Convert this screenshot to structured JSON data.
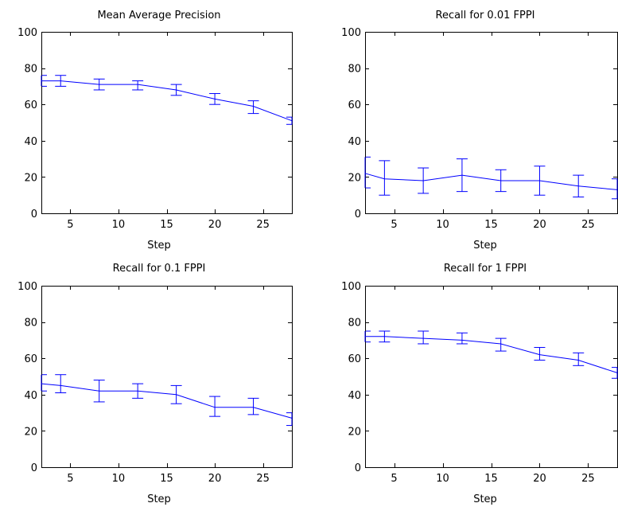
{
  "figure": {
    "background": "#ffffff",
    "axis_color": "#000000",
    "line_color": "#0000ff"
  },
  "chart_data": [
    {
      "type": "line",
      "title": "Mean Average Precision",
      "xlabel": "Step",
      "ylabel": "",
      "xlim": [
        2,
        28
      ],
      "ylim": [
        0,
        100
      ],
      "xticks": [
        5,
        10,
        15,
        20,
        25
      ],
      "yticks": [
        0,
        20,
        40,
        60,
        80,
        100
      ],
      "grid": false,
      "series": [
        {
          "x": [
            2,
            4,
            8,
            12,
            16,
            20,
            24,
            28
          ],
          "y": [
            73,
            73,
            71,
            71,
            68,
            63,
            59,
            51
          ],
          "error_low": [
            70,
            70,
            68,
            68,
            65,
            60,
            55,
            49
          ],
          "error_high": [
            76,
            76,
            74,
            73,
            71,
            66,
            62,
            53
          ]
        }
      ]
    },
    {
      "type": "line",
      "title": "Recall for 0.01 FPPI",
      "xlabel": "Step",
      "ylabel": "",
      "xlim": [
        2,
        28
      ],
      "ylim": [
        0,
        100
      ],
      "xticks": [
        5,
        10,
        15,
        20,
        25
      ],
      "yticks": [
        0,
        20,
        40,
        60,
        80,
        100
      ],
      "grid": false,
      "series": [
        {
          "x": [
            2,
            4,
            8,
            12,
            16,
            20,
            24,
            28
          ],
          "y": [
            22,
            19,
            18,
            21,
            18,
            18,
            15,
            13
          ],
          "error_low": [
            14,
            10,
            11,
            12,
            12,
            10,
            9,
            8
          ],
          "error_high": [
            31,
            29,
            25,
            30,
            24,
            26,
            21,
            19
          ]
        }
      ]
    },
    {
      "type": "line",
      "title": "Recall for 0.1 FPPI",
      "xlabel": "Step",
      "ylabel": "",
      "xlim": [
        2,
        28
      ],
      "ylim": [
        0,
        100
      ],
      "xticks": [
        5,
        10,
        15,
        20,
        25
      ],
      "yticks": [
        0,
        20,
        40,
        60,
        80,
        100
      ],
      "grid": false,
      "series": [
        {
          "x": [
            2,
            4,
            8,
            12,
            16,
            20,
            24,
            28
          ],
          "y": [
            46,
            45,
            42,
            42,
            40,
            33,
            33,
            27
          ],
          "error_low": [
            42,
            41,
            36,
            38,
            35,
            28,
            29,
            23
          ],
          "error_high": [
            51,
            51,
            48,
            46,
            45,
            39,
            38,
            30
          ]
        }
      ]
    },
    {
      "type": "line",
      "title": "Recall for 1 FPPI",
      "xlabel": "Step",
      "ylabel": "",
      "xlim": [
        2,
        28
      ],
      "ylim": [
        0,
        100
      ],
      "xticks": [
        5,
        10,
        15,
        20,
        25
      ],
      "yticks": [
        0,
        20,
        40,
        60,
        80,
        100
      ],
      "grid": false,
      "series": [
        {
          "x": [
            2,
            4,
            8,
            12,
            16,
            20,
            24,
            28
          ],
          "y": [
            72,
            72,
            71,
            70,
            68,
            62,
            59,
            52
          ],
          "error_low": [
            69,
            69,
            68,
            68,
            64,
            59,
            56,
            49
          ],
          "error_high": [
            75,
            75,
            75,
            74,
            71,
            66,
            63,
            55
          ]
        }
      ]
    }
  ]
}
